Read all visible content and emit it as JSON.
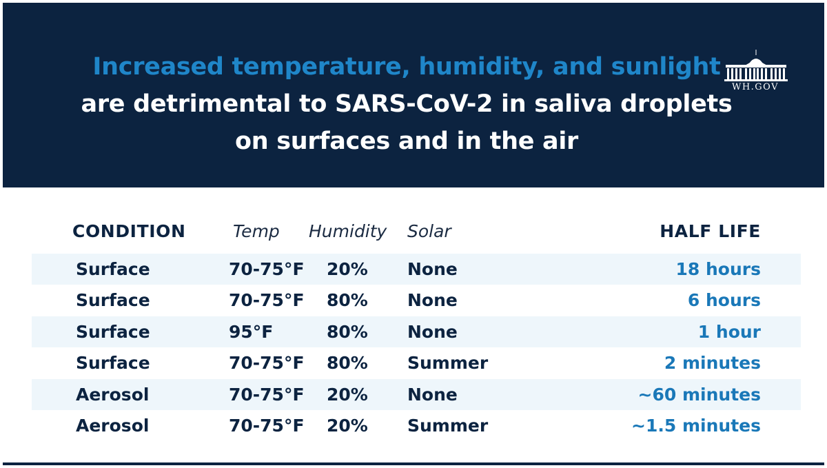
{
  "header": {
    "title_line1": "Increased temperature, humidity, and sunlight",
    "title_line2": "are detrimental to SARS-CoV-2 in saliva droplets",
    "title_line3": "on surfaces and in the air",
    "logo_text": "WH.GOV",
    "logo_icon": "white-house-icon"
  },
  "table": {
    "columns": {
      "condition": "CONDITION",
      "temp": "Temp",
      "humidity": "Humidity",
      "solar": "Solar",
      "half_life": "HALF LIFE"
    },
    "rows": [
      {
        "condition": "Surface",
        "temp": "70-75°F",
        "humidity": "20%",
        "solar": "None",
        "half_life": "18 hours"
      },
      {
        "condition": "Surface",
        "temp": "70-75°F",
        "humidity": "80%",
        "solar": "None",
        "half_life": "6 hours"
      },
      {
        "condition": "Surface",
        "temp": "95°F",
        "humidity": "80%",
        "solar": "None",
        "half_life": "1 hour"
      },
      {
        "condition": "Surface",
        "temp": "70-75°F",
        "humidity": "80%",
        "solar": "Summer",
        "half_life": "2 minutes"
      },
      {
        "condition": "Aerosol",
        "temp": "70-75°F",
        "humidity": "20%",
        "solar": "None",
        "half_life": "~60 minutes"
      },
      {
        "condition": "Aerosol",
        "temp": "70-75°F",
        "humidity": "20%",
        "solar": "Summer",
        "half_life": "~1.5 minutes"
      }
    ]
  },
  "colors": {
    "navy": "#0c2340",
    "accent_blue": "#1f86c9",
    "half_life_blue": "#1a78b8",
    "row_shade": "#eef6fb"
  }
}
